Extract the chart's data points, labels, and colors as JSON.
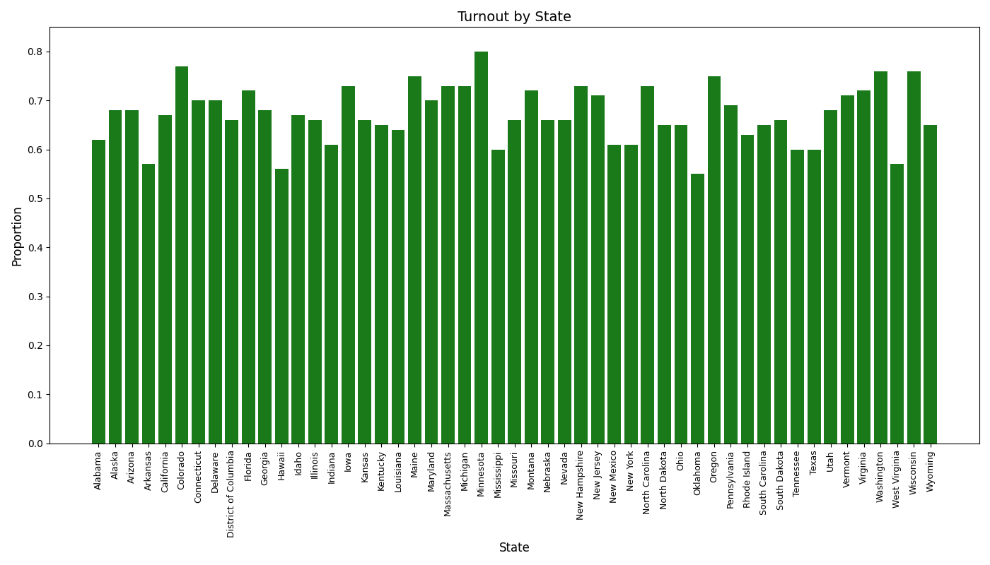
{
  "title": "Turnout by State",
  "xlabel": "State",
  "ylabel": "Proportion",
  "bar_color": "#1a7a1a",
  "states": [
    "Alabama",
    "Alaska",
    "Arizona",
    "Arkansas",
    "California",
    "Colorado",
    "Connecticut",
    "Delaware",
    "District of Columbia",
    "Florida",
    "Georgia",
    "Hawaii",
    "Idaho",
    "Illinois",
    "Indiana",
    "Iowa",
    "Kansas",
    "Kentucky",
    "Louisiana",
    "Maine",
    "Maryland",
    "Massachusetts",
    "Michigan",
    "Minnesota",
    "Mississippi",
    "Missouri",
    "Montana",
    "Nebraska",
    "Nevada",
    "New Hampshire",
    "New Jersey",
    "New Mexico",
    "New York",
    "North Carolina",
    "North Dakota",
    "Ohio",
    "Oklahoma",
    "Oregon",
    "Pennsylvania",
    "Rhode Island",
    "South Carolina",
    "South Dakota",
    "Tennessee",
    "Texas",
    "Utah",
    "Vermont",
    "Virginia",
    "Washington",
    "West Virginia",
    "Wisconsin",
    "Wyoming"
  ],
  "values": [
    0.62,
    0.68,
    0.68,
    0.57,
    0.67,
    0.77,
    0.7,
    0.7,
    0.66,
    0.72,
    0.68,
    0.56,
    0.67,
    0.66,
    0.61,
    0.73,
    0.66,
    0.65,
    0.64,
    0.75,
    0.7,
    0.73,
    0.73,
    0.8,
    0.6,
    0.66,
    0.72,
    0.66,
    0.66,
    0.73,
    0.71,
    0.61,
    0.61,
    0.73,
    0.65,
    0.65,
    0.55,
    0.75,
    0.69,
    0.63,
    0.65,
    0.66,
    0.6,
    0.6,
    0.68,
    0.71,
    0.72,
    0.76,
    0.57,
    0.76,
    0.65
  ],
  "ylim": [
    0.0,
    0.85
  ],
  "yticks": [
    0.0,
    0.1,
    0.2,
    0.3,
    0.4,
    0.5,
    0.6,
    0.7,
    0.8
  ],
  "title_fontsize": 14,
  "label_fontsize": 12,
  "tick_fontsize": 9
}
